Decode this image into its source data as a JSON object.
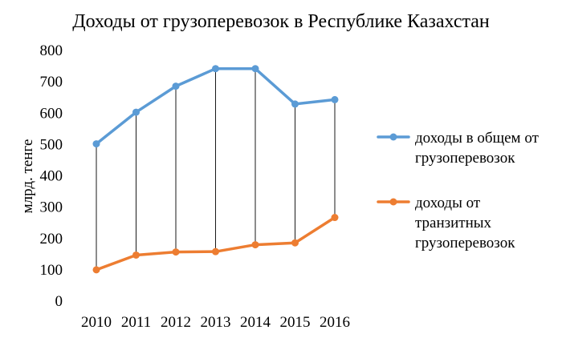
{
  "chart_data": {
    "type": "line",
    "title": "Доходы от грузоперевозок в Республике Казахстан",
    "xlabel": "",
    "ylabel": "млрд. тенге",
    "categories": [
      "2010",
      "2011",
      "2012",
      "2013",
      "2014",
      "2015",
      "2016"
    ],
    "ylim": [
      0,
      800
    ],
    "yticks": [
      "0",
      "100",
      "200",
      "300",
      "400",
      "500",
      "600",
      "700",
      "800"
    ],
    "grid": false,
    "drop_lines": true,
    "legend_position": "right",
    "series": [
      {
        "name": "доходы в общем от грузоперевозок",
        "legend_lines": [
          "доходы в общем от",
          "грузоперевозок"
        ],
        "color": "#5b9bd5",
        "values": [
          502,
          603,
          686,
          742,
          742,
          629,
          643
        ]
      },
      {
        "name": "доходы от транзитных грузоперевозок",
        "legend_lines": [
          "доходы от",
          "транзитных",
          "грузоперевозок"
        ],
        "color": "#ed7d31",
        "values": [
          100,
          147,
          157,
          158,
          180,
          186,
          267
        ]
      }
    ]
  }
}
